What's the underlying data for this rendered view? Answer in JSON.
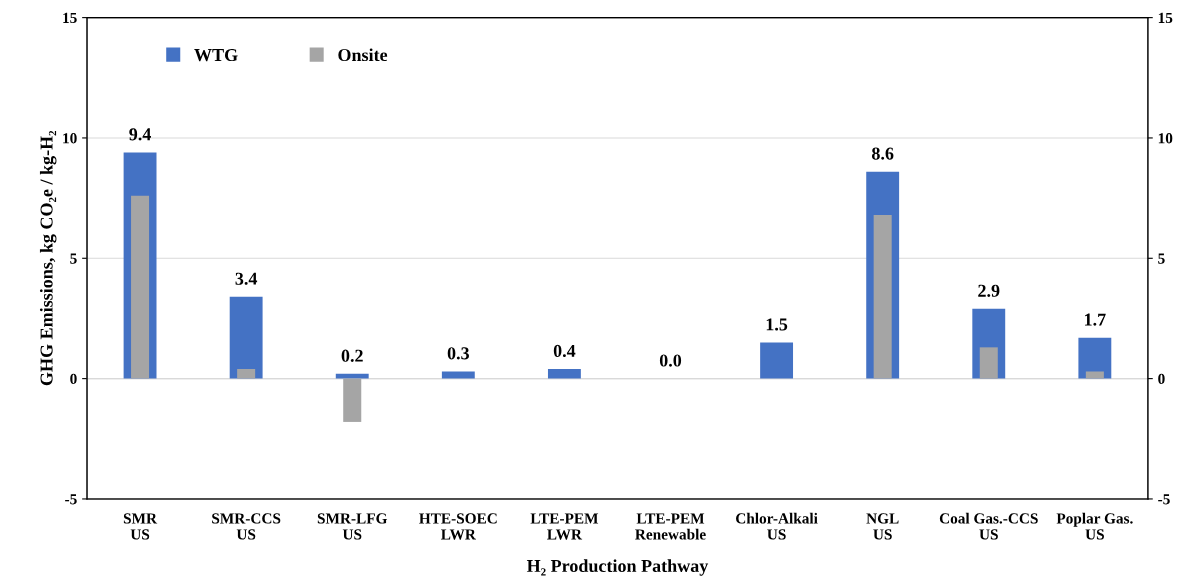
{
  "chart_data": {
    "type": "bar",
    "xlabel": "H₂ Production Pathway",
    "ylabel": "GHG Emissions, kg CO₂e / kg-H₂",
    "categories": [
      "SMR\nUS",
      "SMR-CCS\nUS",
      "SMR-LFG\nUS",
      "HTE-SOEC\nLWR",
      "LTE-PEM\nLWR",
      "LTE-PEM\nRenewable",
      "Chlor-Alkali\nUS",
      "NGL\nUS",
      "Coal Gas.-CCS\nUS",
      "Poplar Gas.\nUS"
    ],
    "series": [
      {
        "name": "WTG",
        "color": "#4472c4",
        "values": [
          9.4,
          3.4,
          0.2,
          0.3,
          0.4,
          0.0,
          1.5,
          8.6,
          2.9,
          1.7
        ],
        "value_labels": [
          "9.4",
          "3.4",
          "0.2",
          "0.3",
          "0.4",
          "0.0",
          "1.5",
          "8.6",
          "2.9",
          "1.7"
        ]
      },
      {
        "name": "Onsite",
        "color": "#a5a5a5",
        "values": [
          7.6,
          0.4,
          -1.8,
          0,
          0,
          0,
          0,
          6.8,
          1.3,
          0.3
        ]
      }
    ],
    "ylim": [
      -5,
      15
    ],
    "yticks": [
      -5,
      0,
      5,
      10,
      15
    ],
    "y2lim": [
      -5,
      15
    ],
    "y2ticks": [
      -5,
      0,
      5,
      10,
      15
    ],
    "grid": "y",
    "legend": "top left"
  }
}
